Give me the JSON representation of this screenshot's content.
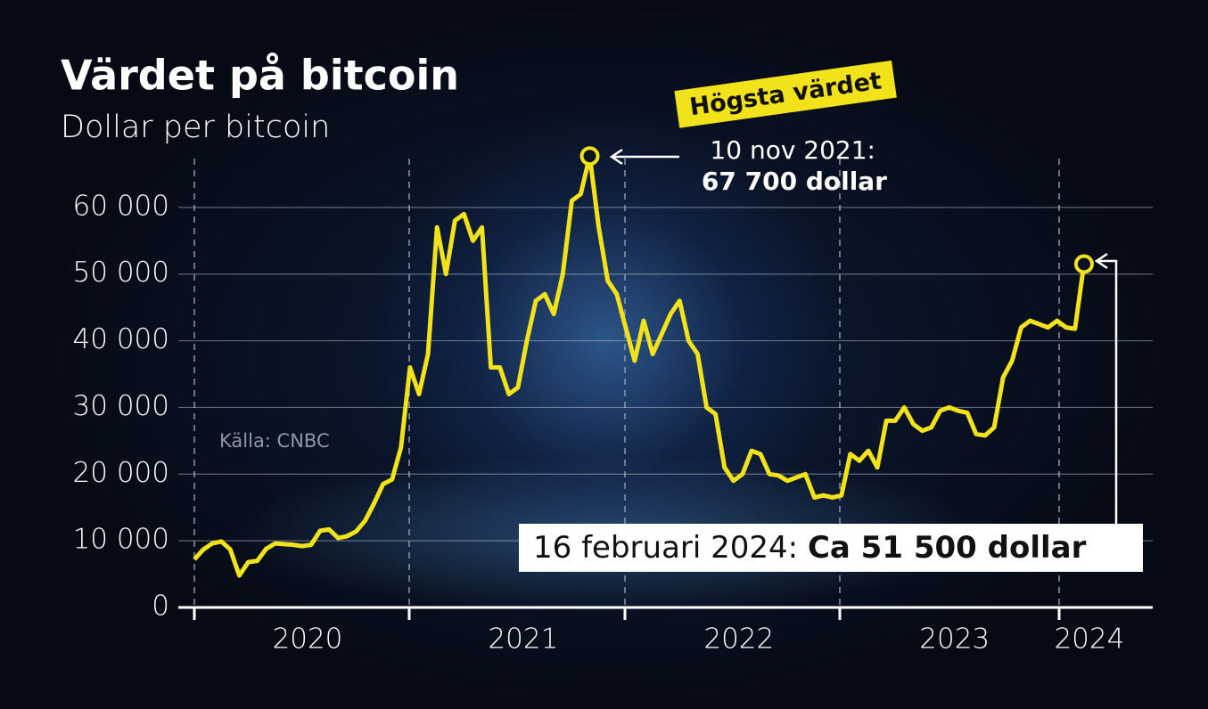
{
  "chart_data": {
    "type": "line",
    "title": "Värdet på bitcoin",
    "subtitle": "Dollar per bitcoin",
    "source": "Källa: CNBC",
    "annotations": {
      "peak_tag": "Högsta värdet",
      "peak_date": "10 nov 2021:",
      "peak_value": "67 700 dollar",
      "last_date": "16 februari 2024:",
      "last_value": "Ca 51 500 dollar"
    },
    "categories": [
      null,
      null,
      null,
      null,
      null,
      null,
      null,
      null,
      null,
      null,
      null,
      null,
      "2020",
      null,
      null,
      null,
      null,
      null,
      null,
      null,
      null,
      null,
      null,
      null,
      null,
      null,
      null,
      null,
      null,
      null,
      null,
      null,
      null,
      null,
      null,
      null,
      "2021",
      null,
      null,
      null,
      null,
      null,
      null,
      null,
      null,
      null,
      null,
      null,
      null,
      null,
      null,
      null,
      null,
      null,
      null,
      null,
      null,
      null,
      null,
      null,
      "2022",
      null,
      null,
      null,
      null,
      null,
      null,
      null,
      null,
      null,
      null,
      null,
      null,
      null,
      null,
      null,
      null,
      null,
      null,
      null,
      null,
      null,
      null,
      null,
      "2023",
      null,
      null,
      null,
      null,
      null,
      null,
      null,
      null,
      null,
      null,
      null,
      null,
      null,
      null,
      "2024"
    ],
    "series": [
      {
        "name": "Bitcoin",
        "color": "#f2e21a",
        "values": [
          7200,
          8700,
          9600,
          9900,
          8700,
          4800,
          6800,
          7000,
          8800,
          9600,
          9500,
          9400,
          9200,
          9400,
          11500,
          11700,
          10400,
          10700,
          11400,
          13000,
          15600,
          18500,
          19200,
          24000,
          36000,
          32000,
          38000,
          57000,
          50000,
          58000,
          59000,
          55000,
          57000,
          36000,
          36000,
          32000,
          33000,
          40000,
          46000,
          47000,
          44000,
          50000,
          61000,
          62000,
          67700,
          57000,
          49000,
          47000,
          42000,
          37000,
          43000,
          38000,
          41000,
          44000,
          46000,
          40000,
          38000,
          30000,
          29000,
          21000,
          19000,
          20000,
          23500,
          23000,
          20000,
          19800,
          19000,
          19500,
          20000,
          16500,
          16800,
          16500,
          16800,
          23000,
          22000,
          23500,
          21000,
          28000,
          28000,
          30000,
          27500,
          26500,
          27000,
          29500,
          30000,
          29500,
          29200,
          26000,
          25800,
          27000,
          34500,
          37000,
          42000,
          43000,
          42500,
          42000,
          43000,
          42000,
          41800,
          51500
        ]
      }
    ],
    "ylim": [
      0,
      70000
    ],
    "yticks": [
      0,
      {
        "value": 10000,
        "label": "10 000"
      },
      {
        "value": 20000,
        "label": "20 000"
      },
      {
        "value": 30000,
        "label": "30 000"
      },
      {
        "value": 40000,
        "label": "40 000"
      },
      {
        "value": 50000,
        "label": "50 000"
      },
      {
        "value": 60000,
        "label": "60 000"
      }
    ],
    "grid": true
  }
}
